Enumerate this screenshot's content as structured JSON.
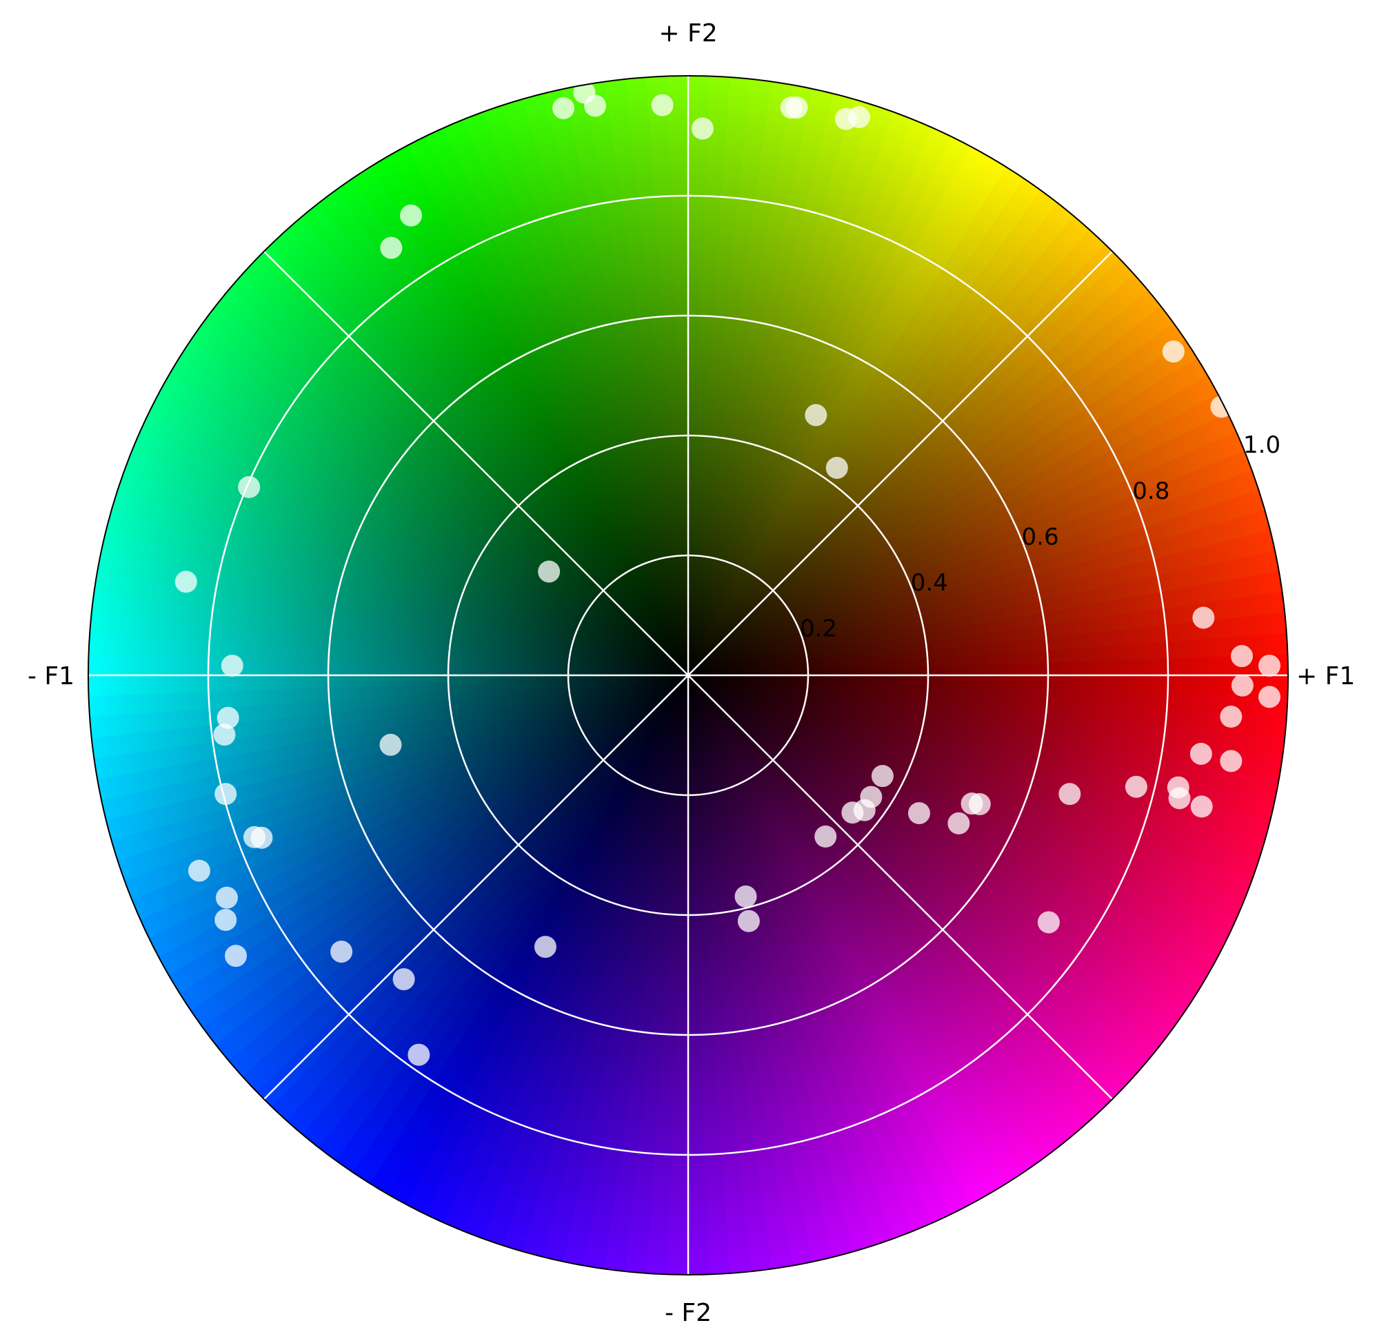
{
  "chart_data": {
    "type": "scatter",
    "coordinate_system": "polar",
    "title": "",
    "direction_labels": {
      "east": "+ F1",
      "north": "+ F2",
      "west": "- F1",
      "south": "- F2"
    },
    "radial_ticks": [
      "0.2",
      "0.4",
      "0.6",
      "0.8",
      "1.0"
    ],
    "radial_tick_values": [
      0.2,
      0.4,
      0.6,
      0.8,
      1.0
    ],
    "radial_range": [
      0,
      1.0
    ],
    "angular_gridlines_deg": [
      0,
      45,
      90,
      135,
      180,
      225,
      270,
      315
    ],
    "grid": true,
    "background": "hue wheel: angle maps to hue (0° red, 60° yellow, 120° green, 180° cyan, 240° blue, 300° magenta), brightness increases with radius",
    "marker_color": "#ffffff",
    "marker_opacity": 0.75,
    "points": [
      {
        "x": 0.923,
        "y": 0.032
      },
      {
        "x": 0.969,
        "y": 0.016
      },
      {
        "x": 0.924,
        "y": -0.017
      },
      {
        "x": 0.969,
        "y": -0.036
      },
      {
        "x": 0.905,
        "y": -0.069
      },
      {
        "x": 0.905,
        "y": -0.143
      },
      {
        "x": 0.859,
        "y": 0.096
      },
      {
        "x": 0.855,
        "y": -0.131
      },
      {
        "x": 0.817,
        "y": -0.187
      },
      {
        "x": 0.747,
        "y": -0.186
      },
      {
        "x": 0.819,
        "y": -0.205
      },
      {
        "x": 0.856,
        "y": -0.219
      },
      {
        "x": 0.636,
        "y": -0.198
      },
      {
        "x": 0.601,
        "y": -0.412
      },
      {
        "x": 0.486,
        "y": -0.215
      },
      {
        "x": 0.473,
        "y": -0.214
      },
      {
        "x": 0.451,
        "y": -0.247
      },
      {
        "x": 0.385,
        "y": -0.23
      },
      {
        "x": 0.324,
        "y": -0.168
      },
      {
        "x": 0.305,
        "y": -0.203
      },
      {
        "x": 0.294,
        "y": -0.225
      },
      {
        "x": 0.274,
        "y": -0.229
      },
      {
        "x": 0.229,
        "y": -0.269
      },
      {
        "x": 0.096,
        "y": -0.369
      },
      {
        "x": 0.101,
        "y": -0.41
      },
      {
        "x": 0.809,
        "y": 0.54
      },
      {
        "x": 0.889,
        "y": 0.448
      },
      {
        "x": 0.213,
        "y": 0.434
      },
      {
        "x": 0.248,
        "y": 0.346
      },
      {
        "x": 0.172,
        "y": 0.947
      },
      {
        "x": 0.181,
        "y": 0.947
      },
      {
        "x": 0.263,
        "y": 0.928
      },
      {
        "x": 0.285,
        "y": 0.931
      },
      {
        "x": 0.024,
        "y": 0.912
      },
      {
        "x": -0.043,
        "y": 0.951
      },
      {
        "x": -0.173,
        "y": 0.972
      },
      {
        "x": -0.155,
        "y": 0.95
      },
      {
        "x": -0.208,
        "y": 0.946
      },
      {
        "x": -0.462,
        "y": 0.767
      },
      {
        "x": -0.495,
        "y": 0.713
      },
      {
        "x": -0.732,
        "y": 0.314
      },
      {
        "x": -0.837,
        "y": 0.156
      },
      {
        "x": -0.76,
        "y": 0.016
      },
      {
        "x": -0.767,
        "y": -0.071
      },
      {
        "x": -0.773,
        "y": -0.099
      },
      {
        "x": -0.771,
        "y": -0.198
      },
      {
        "x": -0.723,
        "y": -0.27
      },
      {
        "x": -0.711,
        "y": -0.271
      },
      {
        "x": -0.815,
        "y": -0.326
      },
      {
        "x": -0.769,
        "y": -0.371
      },
      {
        "x": -0.771,
        "y": -0.408
      },
      {
        "x": -0.754,
        "y": -0.468
      },
      {
        "x": -0.496,
        "y": -0.116
      },
      {
        "x": -0.578,
        "y": -0.461
      },
      {
        "x": -0.238,
        "y": -0.453
      },
      {
        "x": -0.474,
        "y": -0.507
      },
      {
        "x": -0.449,
        "y": -0.633
      },
      {
        "x": -0.232,
        "y": 0.173
      }
    ]
  }
}
